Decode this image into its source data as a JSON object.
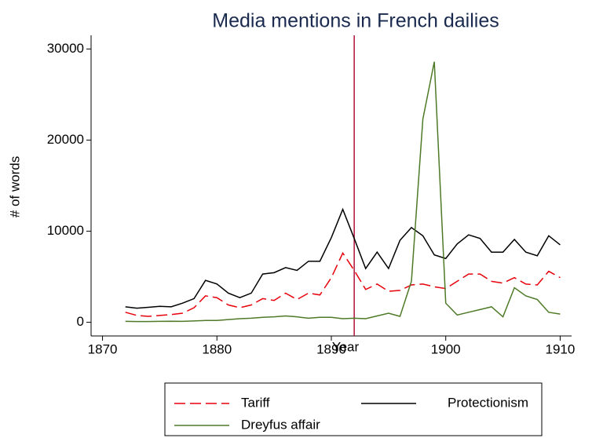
{
  "chart_data": {
    "type": "line",
    "title": "Media mentions in French dailies",
    "xlabel": "Year",
    "ylabel": "# of words",
    "x": [
      1872,
      1873,
      1874,
      1875,
      1876,
      1877,
      1878,
      1879,
      1880,
      1881,
      1882,
      1883,
      1884,
      1885,
      1886,
      1887,
      1888,
      1889,
      1890,
      1891,
      1892,
      1893,
      1894,
      1895,
      1896,
      1897,
      1898,
      1899,
      1900,
      1901,
      1902,
      1903,
      1904,
      1905,
      1906,
      1907,
      1908,
      1909,
      1910
    ],
    "series": [
      {
        "name": "Tariff",
        "color": "#e8000b",
        "dash": true,
        "values": [
          1100,
          750,
          650,
          750,
          850,
          1000,
          1600,
          2900,
          2700,
          1900,
          1600,
          1900,
          2600,
          2400,
          3200,
          2500,
          3200,
          3000,
          4900,
          7600,
          5700,
          3600,
          4200,
          3400,
          3500,
          4100,
          4200,
          3900,
          3700,
          4500,
          5300,
          5300,
          4500,
          4300,
          4900,
          4200,
          4100,
          5600,
          4900
        ]
      },
      {
        "name": "Protectionism",
        "color": "#000000",
        "dash": false,
        "values": [
          1700,
          1550,
          1650,
          1750,
          1700,
          2100,
          2600,
          4600,
          4200,
          3200,
          2700,
          3200,
          5300,
          5450,
          6000,
          5700,
          6700,
          6700,
          9300,
          12400,
          9200,
          5900,
          7700,
          5900,
          9000,
          10400,
          9500,
          7400,
          7000,
          8600,
          9600,
          9200,
          7700,
          7700,
          9100,
          7700,
          7300,
          9500,
          8500
        ]
      },
      {
        "name": "Dreyfus affair",
        "color": "#4e7a27",
        "dash": false,
        "values": [
          100,
          80,
          80,
          100,
          120,
          100,
          150,
          200,
          200,
          300,
          400,
          450,
          550,
          600,
          700,
          600,
          450,
          550,
          550,
          400,
          450,
          400,
          700,
          1000,
          650,
          4500,
          22300,
          28600,
          2100,
          800,
          1100,
          1400,
          1700,
          600,
          3800,
          2900,
          2500,
          1100,
          900
        ]
      }
    ],
    "xlim": [
      1869,
      1911
    ],
    "xticks": [
      1870,
      1880,
      1890,
      1900,
      1910
    ],
    "ylim": [
      -1500,
      31500
    ],
    "yticks": [
      0,
      10000,
      20000,
      30000
    ],
    "vline": 1892,
    "vline_color": "#b0103a",
    "title_color": "#1a2a4f",
    "legend": "bottom"
  }
}
